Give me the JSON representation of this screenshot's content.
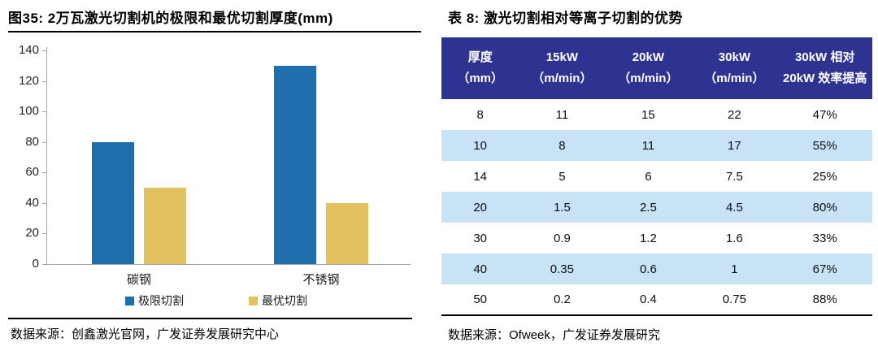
{
  "left_panel": {
    "source": "数据来源：创鑫激光官网，广发证券发展研究中心"
  },
  "right_panel": {
    "source": "数据来源：Ofweek，广发证券发展研究"
  },
  "chart_data": [
    {
      "type": "bar",
      "title": "图35:  2万瓦激光切割机的极限和最优切割厚度(mm)",
      "categories": [
        "碳钢",
        "不锈钢"
      ],
      "series": [
        {
          "name": "极限切割",
          "color": "#1F6FAD",
          "values": [
            80,
            130
          ]
        },
        {
          "name": "最优切割",
          "color": "#E2C260",
          "values": [
            50,
            40
          ]
        }
      ],
      "xlabel": "",
      "ylabel": "",
      "ylim": [
        0,
        140
      ],
      "ytick_step": 20,
      "grid": false,
      "legend_position": "bottom",
      "axis_color": "#a6a6a6"
    },
    {
      "type": "table",
      "title": "表 8:  激光切割相对等离子切割的优势",
      "columns": [
        {
          "line1": "厚度",
          "line2": "（mm）"
        },
        {
          "line1": "15kW",
          "line2": "（m/min）"
        },
        {
          "line1": "20kW",
          "line2": "（m/min）"
        },
        {
          "line1": "30kW",
          "line2": "（m/min）"
        },
        {
          "line1": "30kW 相对",
          "line2": "20kW 效率提高"
        }
      ],
      "rows": [
        [
          "8",
          "11",
          "15",
          "22",
          "47%"
        ],
        [
          "10",
          "8",
          "11",
          "17",
          "55%"
        ],
        [
          "14",
          "5",
          "6",
          "7.5",
          "25%"
        ],
        [
          "20",
          "1.5",
          "2.5",
          "4.5",
          "80%"
        ],
        [
          "30",
          "0.9",
          "1.2",
          "1.6",
          "33%"
        ],
        [
          "40",
          "0.35",
          "0.6",
          "1",
          "67%"
        ],
        [
          "50",
          "0.2",
          "0.4",
          "0.75",
          "88%"
        ]
      ],
      "colors": {
        "header_bg": "#2E3391",
        "header_text": "#FFFFFF",
        "alt_row_bg": "#C9E3F6",
        "row_bg": "#FFFFFF"
      }
    }
  ]
}
